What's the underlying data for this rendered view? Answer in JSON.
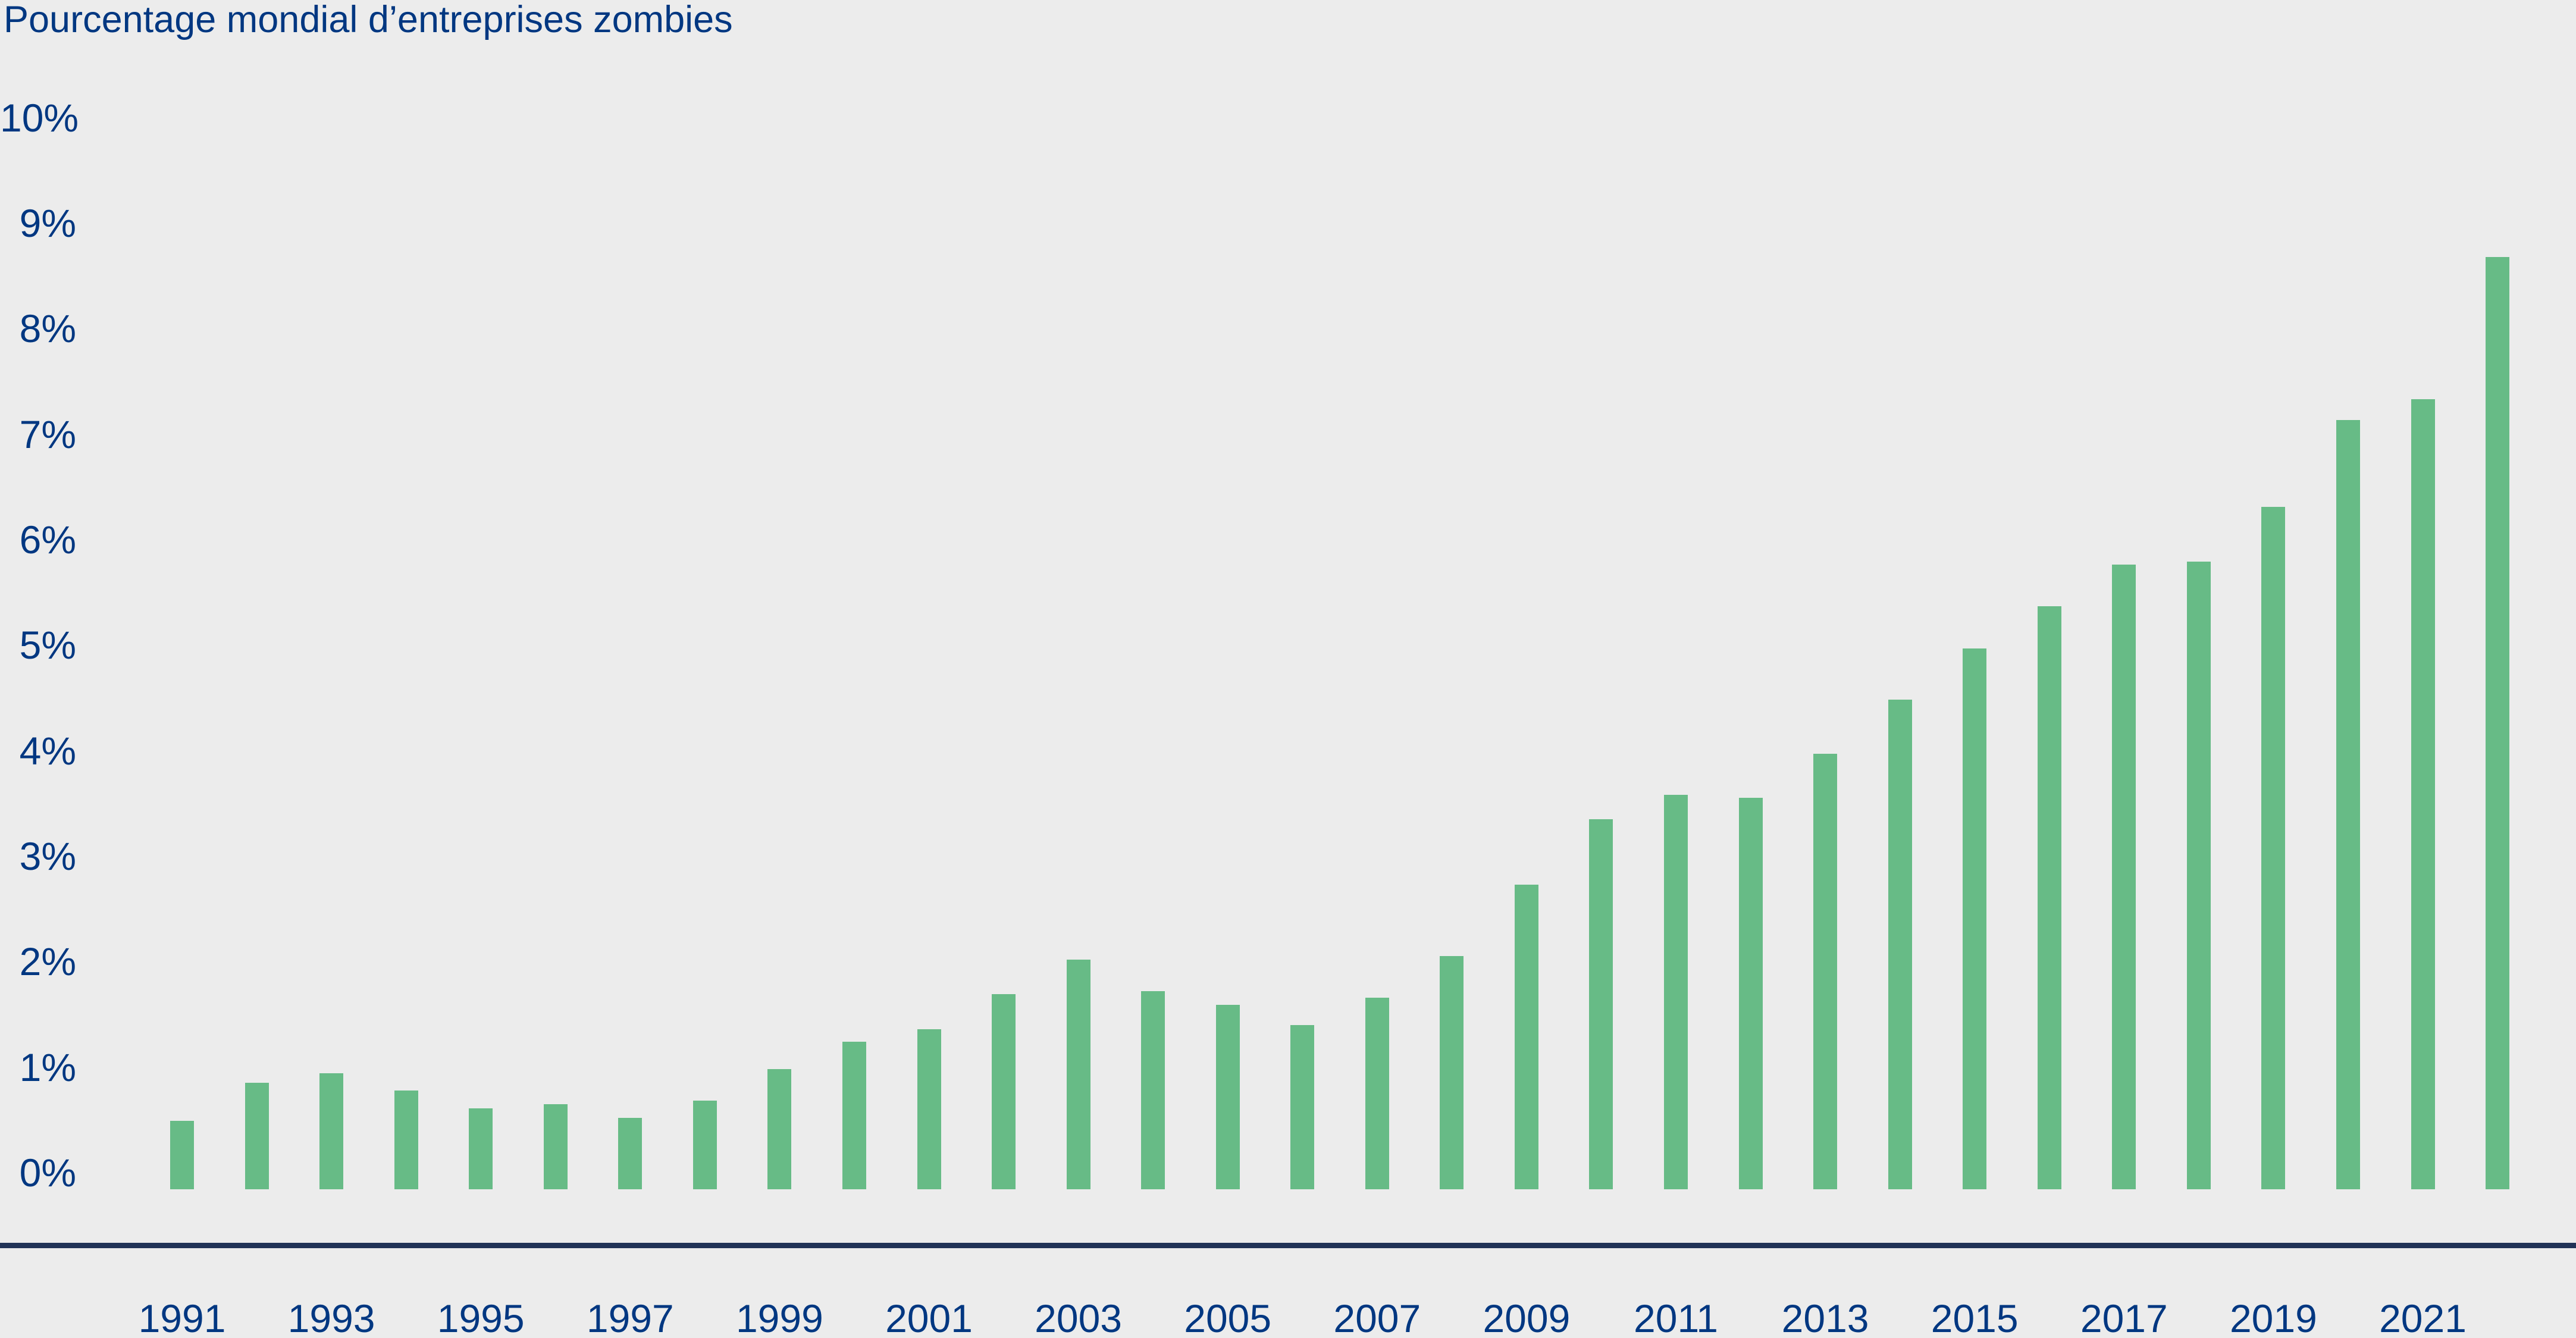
{
  "chart_data": {
    "type": "bar",
    "title": "Pourcentage mondial d’entreprises zombies",
    "categories": [
      1991,
      1992,
      1993,
      1994,
      1995,
      1996,
      1997,
      1998,
      1999,
      2000,
      2001,
      2002,
      2003,
      2004,
      2005,
      2006,
      2007,
      2008,
      2009,
      2010,
      2011,
      2012,
      2013,
      2014,
      2015,
      2016,
      2017,
      2018,
      2019,
      2020,
      2021,
      2022
    ],
    "values": [
      0.49,
      0.85,
      0.94,
      0.78,
      0.61,
      0.65,
      0.52,
      0.68,
      0.98,
      1.24,
      1.36,
      1.69,
      2.02,
      1.72,
      1.59,
      1.4,
      1.66,
      2.05,
      2.73,
      3.35,
      3.58,
      3.55,
      3.97,
      4.48,
      4.97,
      5.37,
      5.76,
      5.79,
      6.31,
      7.13,
      7.33,
      8.68
    ],
    "xlabel": "",
    "ylabel": "",
    "ylim": [
      0,
      10
    ],
    "grid": false,
    "legend": "none",
    "yticks": [
      {
        "value": 10,
        "label": "10%"
      },
      {
        "value": 9,
        "label": "9%"
      },
      {
        "value": 8,
        "label": "8%"
      },
      {
        "value": 7,
        "label": "7%"
      },
      {
        "value": 6,
        "label": "6%"
      },
      {
        "value": 5,
        "label": "5%"
      },
      {
        "value": 4,
        "label": "4%"
      },
      {
        "value": 3,
        "label": "3%"
      },
      {
        "value": 2,
        "label": "2%"
      },
      {
        "value": 1,
        "label": "1%"
      },
      {
        "value": 0,
        "label": "0%"
      }
    ],
    "xticks": [
      {
        "year": 1991,
        "label": "1991"
      },
      {
        "year": 1993,
        "label": "1993"
      },
      {
        "year": 1995,
        "label": "1995"
      },
      {
        "year": 1997,
        "label": "1997"
      },
      {
        "year": 1999,
        "label": "1999"
      },
      {
        "year": 2001,
        "label": "2001"
      },
      {
        "year": 2003,
        "label": "2003"
      },
      {
        "year": 2005,
        "label": "2005"
      },
      {
        "year": 2007,
        "label": "2007"
      },
      {
        "year": 2009,
        "label": "2009"
      },
      {
        "year": 2011,
        "label": "2011"
      },
      {
        "year": 2013,
        "label": "2013"
      },
      {
        "year": 2015,
        "label": "2015"
      },
      {
        "year": 2017,
        "label": "2017"
      },
      {
        "year": 2019,
        "label": "2019"
      },
      {
        "year": 2021,
        "label": "2021"
      }
    ],
    "colors": {
      "bar": "#67BB86",
      "text": "#003781",
      "axis_line": "#213357",
      "background": "#ECECEC"
    }
  }
}
